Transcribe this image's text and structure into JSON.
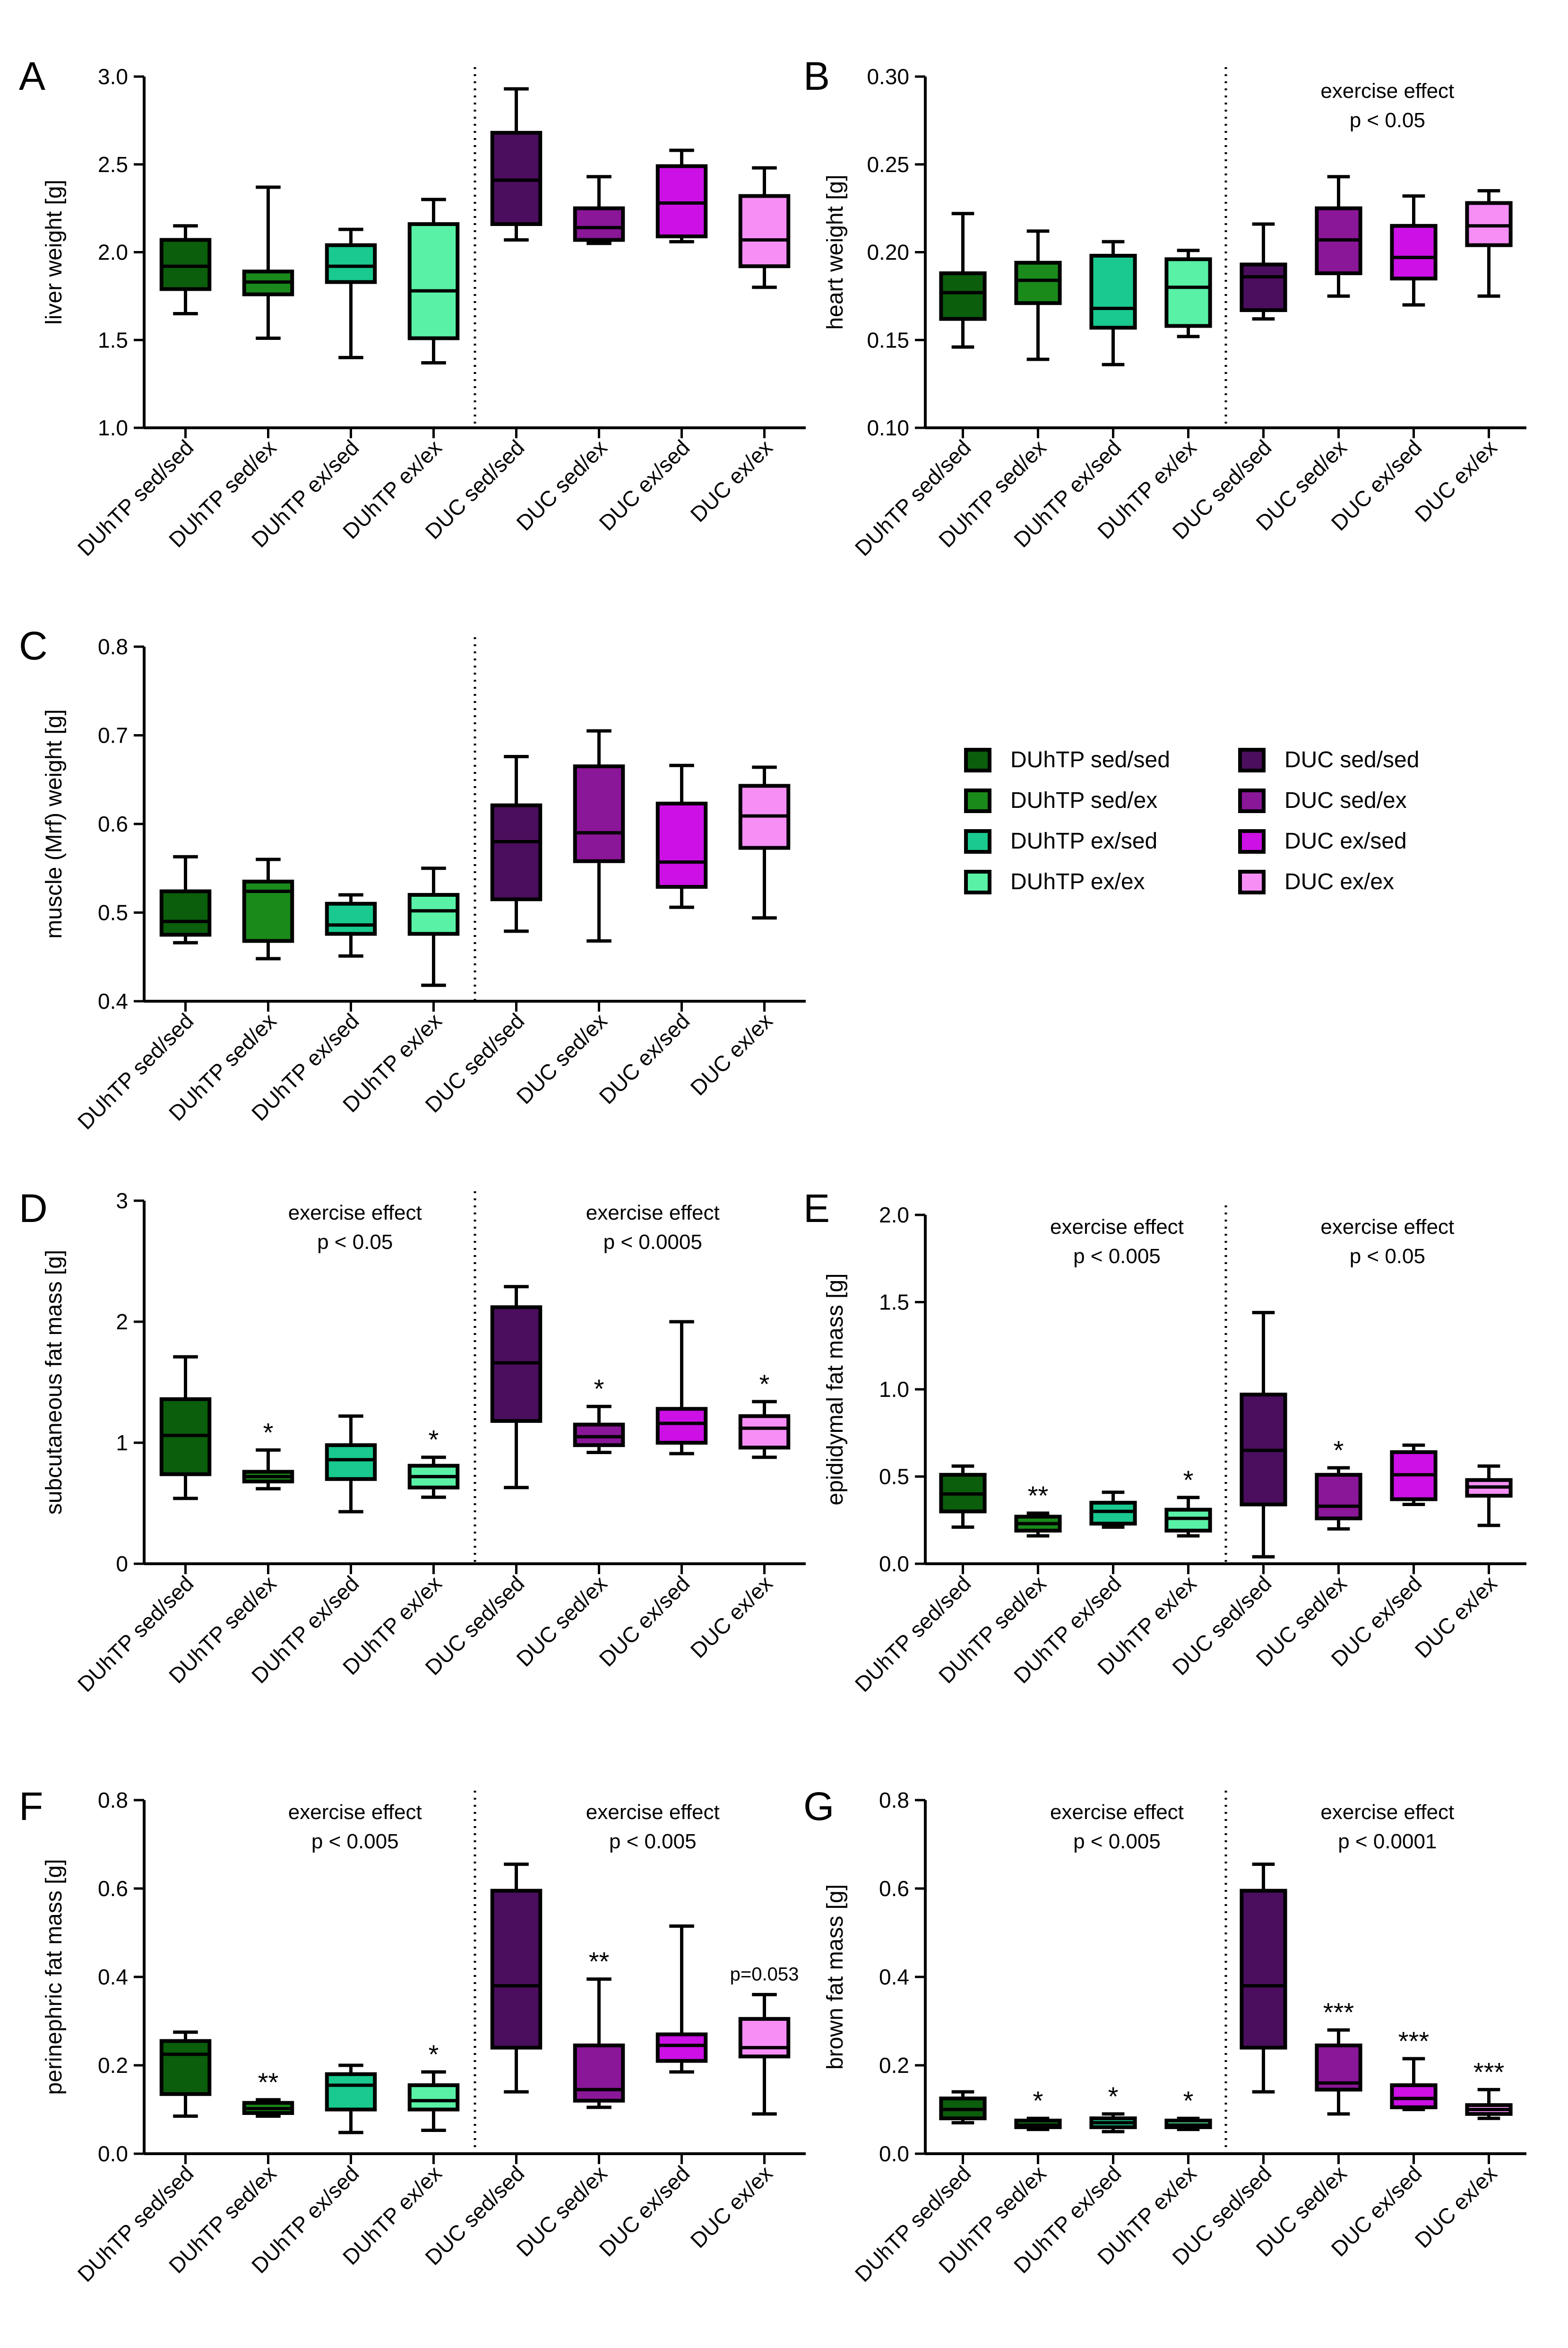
{
  "figure": {
    "group_labels": [
      "DUhTP sed/sed",
      "DUhTP sed/ex",
      "DUhTP ex/sed",
      "DUhTP ex/ex",
      "DUC sed/sed",
      "DUC sed/ex",
      "DUC ex/sed",
      "DUC ex/ex"
    ],
    "group_colors": [
      "#0b5e0b",
      "#1a8a1a",
      "#19c98f",
      "#59f1a6",
      "#4b0e5e",
      "#8a1698",
      "#cc10e6",
      "#f68ef6"
    ]
  },
  "legend": {
    "items": [
      {
        "label": "DUhTP sed/sed",
        "color": "#0b5e0b"
      },
      {
        "label": "DUhTP sed/ex",
        "color": "#1a8a1a"
      },
      {
        "label": "DUhTP ex/sed",
        "color": "#19c98f"
      },
      {
        "label": "DUhTP ex/ex",
        "color": "#59f1a6"
      },
      {
        "label": "DUC sed/sed",
        "color": "#4b0e5e"
      },
      {
        "label": "DUC sed/ex",
        "color": "#8a1698"
      },
      {
        "label": "DUC ex/sed",
        "color": "#cc10e6"
      },
      {
        "label": "DUC ex/ex",
        "color": "#f68ef6"
      }
    ]
  },
  "chart_data": [
    {
      "type": "box",
      "panel": "A",
      "ylabel": "liver weight [g]",
      "ylim": [
        1.0,
        3.0
      ],
      "ticks": [
        "1.0",
        "1.5",
        "2.0",
        "2.5",
        "3.0"
      ],
      "annotations": [],
      "significance": [
        "",
        "",
        "",
        "",
        "",
        "",
        "",
        ""
      ],
      "boxes": [
        {
          "min": 1.65,
          "q1": 1.79,
          "median": 1.92,
          "q3": 2.07,
          "max": 2.15
        },
        {
          "min": 1.51,
          "q1": 1.76,
          "median": 1.83,
          "q3": 1.89,
          "max": 2.37
        },
        {
          "min": 1.4,
          "q1": 1.83,
          "median": 1.92,
          "q3": 2.04,
          "max": 2.13
        },
        {
          "min": 1.37,
          "q1": 1.51,
          "median": 1.78,
          "q3": 2.16,
          "max": 2.3
        },
        {
          "min": 2.07,
          "q1": 2.16,
          "median": 2.41,
          "q3": 2.68,
          "max": 2.93
        },
        {
          "min": 2.05,
          "q1": 2.07,
          "median": 2.14,
          "q3": 2.25,
          "max": 2.43
        },
        {
          "min": 2.06,
          "q1": 2.09,
          "median": 2.28,
          "q3": 2.49,
          "max": 2.58
        },
        {
          "min": 1.8,
          "q1": 1.92,
          "median": 2.07,
          "q3": 2.32,
          "max": 2.48
        }
      ]
    },
    {
      "type": "box",
      "panel": "B",
      "ylabel": "heart weight [g]",
      "ylim": [
        0.1,
        0.3
      ],
      "ticks": [
        "0.10",
        "0.15",
        "0.20",
        "0.25",
        "0.30"
      ],
      "annotations": [
        {
          "lines": [
            "exercise effect",
            "p < 0.05"
          ],
          "side": "DUC"
        }
      ],
      "significance": [
        "",
        "",
        "",
        "",
        "",
        "",
        "",
        ""
      ],
      "boxes": [
        {
          "min": 0.146,
          "q1": 0.162,
          "median": 0.177,
          "q3": 0.188,
          "max": 0.222
        },
        {
          "min": 0.139,
          "q1": 0.171,
          "median": 0.184,
          "q3": 0.194,
          "max": 0.212
        },
        {
          "min": 0.136,
          "q1": 0.157,
          "median": 0.168,
          "q3": 0.198,
          "max": 0.206
        },
        {
          "min": 0.152,
          "q1": 0.158,
          "median": 0.18,
          "q3": 0.196,
          "max": 0.201
        },
        {
          "min": 0.162,
          "q1": 0.167,
          "median": 0.186,
          "q3": 0.193,
          "max": 0.216
        },
        {
          "min": 0.175,
          "q1": 0.188,
          "median": 0.207,
          "q3": 0.225,
          "max": 0.243
        },
        {
          "min": 0.17,
          "q1": 0.185,
          "median": 0.197,
          "q3": 0.215,
          "max": 0.232
        },
        {
          "min": 0.175,
          "q1": 0.204,
          "median": 0.215,
          "q3": 0.228,
          "max": 0.235
        }
      ]
    },
    {
      "type": "box",
      "panel": "C",
      "ylabel": "muscle (Mrf) weight [g]",
      "ylim": [
        0.4,
        0.8
      ],
      "ticks": [
        "0.4",
        "0.5",
        "0.6",
        "0.7",
        "0.8"
      ],
      "annotations": [],
      "significance": [
        "",
        "",
        "",
        "",
        "",
        "",
        "",
        ""
      ],
      "boxes": [
        {
          "min": 0.466,
          "q1": 0.475,
          "median": 0.49,
          "q3": 0.524,
          "max": 0.563
        },
        {
          "min": 0.448,
          "q1": 0.468,
          "median": 0.524,
          "q3": 0.535,
          "max": 0.56
        },
        {
          "min": 0.451,
          "q1": 0.476,
          "median": 0.486,
          "q3": 0.51,
          "max": 0.52
        },
        {
          "min": 0.418,
          "q1": 0.476,
          "median": 0.502,
          "q3": 0.52,
          "max": 0.55
        },
        {
          "min": 0.479,
          "q1": 0.515,
          "median": 0.58,
          "q3": 0.621,
          "max": 0.676
        },
        {
          "min": 0.468,
          "q1": 0.558,
          "median": 0.59,
          "q3": 0.665,
          "max": 0.705
        },
        {
          "min": 0.506,
          "q1": 0.529,
          "median": 0.557,
          "q3": 0.623,
          "max": 0.666
        },
        {
          "min": 0.494,
          "q1": 0.573,
          "median": 0.609,
          "q3": 0.643,
          "max": 0.664
        }
      ]
    },
    {
      "type": "box",
      "panel": "D",
      "ylabel": "subcutaneous fat mass [g]",
      "ylim": [
        0,
        3
      ],
      "ticks": [
        "0",
        "1",
        "2",
        "3"
      ],
      "annotations": [
        {
          "lines": [
            "exercise effect",
            "p < 0.05"
          ],
          "side": "DUhTP"
        },
        {
          "lines": [
            "exercise effect",
            "p < 0.0005"
          ],
          "side": "DUC"
        }
      ],
      "significance": [
        "",
        "*",
        "",
        "*",
        "",
        "*",
        "",
        "*"
      ],
      "boxes": [
        {
          "min": 0.54,
          "q1": 0.74,
          "median": 1.06,
          "q3": 1.36,
          "max": 1.71
        },
        {
          "min": 0.62,
          "q1": 0.68,
          "median": 0.72,
          "q3": 0.76,
          "max": 0.94
        },
        {
          "min": 0.43,
          "q1": 0.7,
          "median": 0.86,
          "q3": 0.98,
          "max": 1.22
        },
        {
          "min": 0.55,
          "q1": 0.63,
          "median": 0.72,
          "q3": 0.81,
          "max": 0.88
        },
        {
          "min": 0.63,
          "q1": 1.18,
          "median": 1.66,
          "q3": 2.12,
          "max": 2.29
        },
        {
          "min": 0.92,
          "q1": 0.98,
          "median": 1.05,
          "q3": 1.15,
          "max": 1.3
        },
        {
          "min": 0.91,
          "q1": 1.0,
          "median": 1.16,
          "q3": 1.28,
          "max": 2.0
        },
        {
          "min": 0.88,
          "q1": 0.96,
          "median": 1.12,
          "q3": 1.22,
          "max": 1.34
        }
      ]
    },
    {
      "type": "box",
      "panel": "E",
      "ylabel": "epididymal fat mass [g]",
      "ylim": [
        0.0,
        2.0
      ],
      "ticks": [
        "0.0",
        "0.5",
        "1.0",
        "1.5",
        "2.0"
      ],
      "annotations": [
        {
          "lines": [
            "exercise effect",
            "p < 0.005"
          ],
          "side": "DUhTP"
        },
        {
          "lines": [
            "exercise effect",
            "p < 0.05"
          ],
          "side": "DUC"
        }
      ],
      "significance": [
        "",
        "**",
        "",
        "*",
        "",
        "*",
        "",
        ""
      ],
      "boxes": [
        {
          "min": 0.21,
          "q1": 0.3,
          "median": 0.4,
          "q3": 0.51,
          "max": 0.56
        },
        {
          "min": 0.16,
          "q1": 0.19,
          "median": 0.23,
          "q3": 0.27,
          "max": 0.29
        },
        {
          "min": 0.21,
          "q1": 0.23,
          "median": 0.3,
          "q3": 0.35,
          "max": 0.41
        },
        {
          "min": 0.16,
          "q1": 0.19,
          "median": 0.26,
          "q3": 0.31,
          "max": 0.38
        },
        {
          "min": 0.04,
          "q1": 0.34,
          "median": 0.65,
          "q3": 0.97,
          "max": 1.44
        },
        {
          "min": 0.2,
          "q1": 0.26,
          "median": 0.33,
          "q3": 0.51,
          "max": 0.55
        },
        {
          "min": 0.34,
          "q1": 0.37,
          "median": 0.51,
          "q3": 0.64,
          "max": 0.68
        },
        {
          "min": 0.22,
          "q1": 0.39,
          "median": 0.44,
          "q3": 0.48,
          "max": 0.56
        }
      ]
    },
    {
      "type": "box",
      "panel": "F",
      "ylabel": "perinephric fat mass [g]",
      "ylim": [
        0.0,
        0.8
      ],
      "ticks": [
        "0.0",
        "0.2",
        "0.4",
        "0.6",
        "0.8"
      ],
      "annotations": [
        {
          "lines": [
            "exercise effect",
            "p < 0.005"
          ],
          "side": "DUhTP"
        },
        {
          "lines": [
            "exercise effect",
            "p < 0.005"
          ],
          "side": "DUC"
        }
      ],
      "significance": [
        "",
        "**",
        "",
        "*",
        "",
        "**",
        "",
        "p=0.053"
      ],
      "boxes": [
        {
          "min": 0.085,
          "q1": 0.135,
          "median": 0.225,
          "q3": 0.255,
          "max": 0.275
        },
        {
          "min": 0.085,
          "q1": 0.092,
          "median": 0.102,
          "q3": 0.115,
          "max": 0.122
        },
        {
          "min": 0.048,
          "q1": 0.1,
          "median": 0.155,
          "q3": 0.18,
          "max": 0.2
        },
        {
          "min": 0.053,
          "q1": 0.1,
          "median": 0.12,
          "q3": 0.155,
          "max": 0.185
        },
        {
          "min": 0.14,
          "q1": 0.24,
          "median": 0.38,
          "q3": 0.595,
          "max": 0.655
        },
        {
          "min": 0.105,
          "q1": 0.12,
          "median": 0.145,
          "q3": 0.245,
          "max": 0.395
        },
        {
          "min": 0.185,
          "q1": 0.21,
          "median": 0.245,
          "q3": 0.27,
          "max": 0.515
        },
        {
          "min": 0.09,
          "q1": 0.22,
          "median": 0.24,
          "q3": 0.305,
          "max": 0.36
        }
      ]
    },
    {
      "type": "box",
      "panel": "G",
      "ylabel": "brown fat mass [g]",
      "ylim": [
        0.0,
        0.8
      ],
      "ticks": [
        "0.0",
        "0.2",
        "0.4",
        "0.6",
        "0.8"
      ],
      "annotations": [
        {
          "lines": [
            "exercise effect",
            "p < 0.005"
          ],
          "side": "DUhTP"
        },
        {
          "lines": [
            "exercise effect",
            "p < 0.0001"
          ],
          "side": "DUC"
        }
      ],
      "significance": [
        "",
        "*",
        "*",
        "*",
        "",
        "***",
        "***",
        "***"
      ],
      "boxes": [
        {
          "min": 0.07,
          "q1": 0.08,
          "median": 0.1,
          "q3": 0.125,
          "max": 0.14
        },
        {
          "min": 0.055,
          "q1": 0.06,
          "median": 0.065,
          "q3": 0.075,
          "max": 0.08
        },
        {
          "min": 0.05,
          "q1": 0.06,
          "median": 0.07,
          "q3": 0.08,
          "max": 0.09
        },
        {
          "min": 0.055,
          "q1": 0.06,
          "median": 0.065,
          "q3": 0.075,
          "max": 0.08
        },
        {
          "min": 0.14,
          "q1": 0.24,
          "median": 0.38,
          "q3": 0.595,
          "max": 0.655
        },
        {
          "min": 0.09,
          "q1": 0.145,
          "median": 0.16,
          "q3": 0.245,
          "max": 0.28
        },
        {
          "min": 0.1,
          "q1": 0.105,
          "median": 0.125,
          "q3": 0.155,
          "max": 0.215
        },
        {
          "min": 0.08,
          "q1": 0.09,
          "median": 0.1,
          "q3": 0.11,
          "max": 0.145
        }
      ]
    }
  ]
}
